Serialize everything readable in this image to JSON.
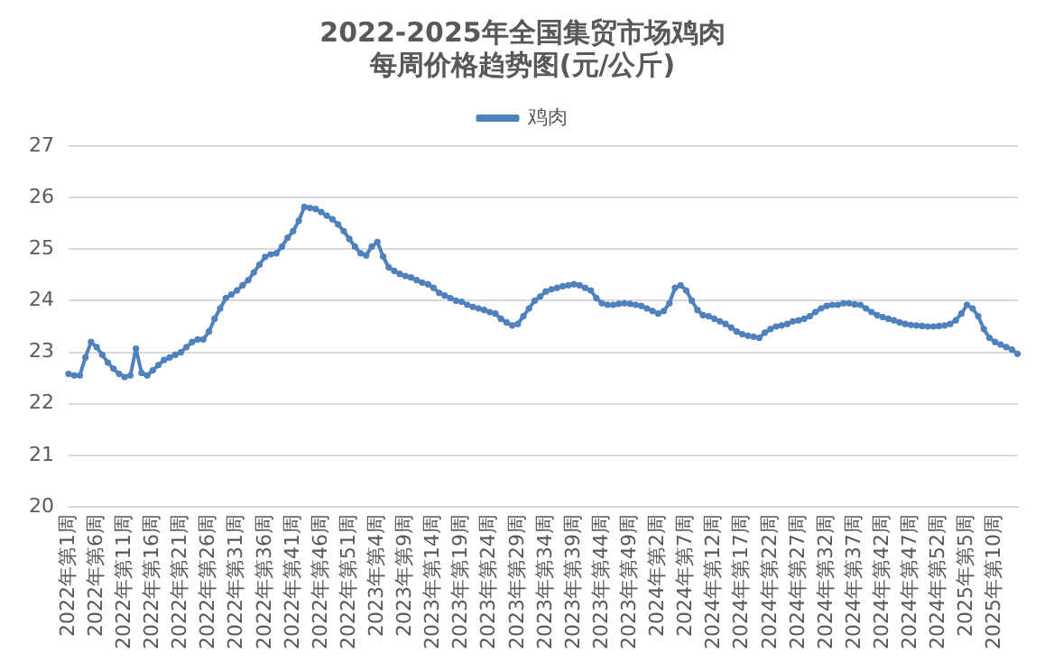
{
  "chart_data": {
    "type": "line",
    "title": "2022-2025年全国集贸市场鸡肉",
    "subtitle": "每周价格趋势图(元/公斤)",
    "categories": [
      "2022年第1周",
      null,
      null,
      null,
      null,
      "2022年第6周",
      null,
      null,
      null,
      null,
      "2022年第11周",
      null,
      null,
      null,
      null,
      "2022年第16周",
      null,
      null,
      null,
      null,
      "2022年第21周",
      null,
      null,
      null,
      null,
      "2022年第26周",
      null,
      null,
      null,
      null,
      "2022年第31周",
      null,
      null,
      null,
      null,
      "2022年第36周",
      null,
      null,
      null,
      null,
      "2022年第41周",
      null,
      null,
      null,
      null,
      "2022年第46周",
      null,
      null,
      null,
      null,
      "2022年第51周",
      null,
      null,
      null,
      null,
      "2023年第4周",
      null,
      null,
      null,
      null,
      "2023年第9周",
      null,
      null,
      null,
      null,
      "2023年第14周",
      null,
      null,
      null,
      null,
      "2023年第19周",
      null,
      null,
      null,
      null,
      "2023年第24周",
      null,
      null,
      null,
      null,
      "2023年第29周",
      null,
      null,
      null,
      null,
      "2023年第34周",
      null,
      null,
      null,
      null,
      "2023年第39周",
      null,
      null,
      null,
      null,
      "2023年第44周",
      null,
      null,
      null,
      null,
      "2023年第49周",
      null,
      null,
      null,
      null,
      "2024年第2周",
      null,
      null,
      null,
      null,
      "2024年第7周",
      null,
      null,
      null,
      null,
      "2024年第12周",
      null,
      null,
      null,
      null,
      "2024年第17周",
      null,
      null,
      null,
      null,
      "2024年第22周",
      null,
      null,
      null,
      null,
      "2024年第27周",
      null,
      null,
      null,
      null,
      "2024年第32周",
      null,
      null,
      null,
      null,
      "2024年第37周",
      null,
      null,
      null,
      null,
      "2024年第42周",
      null,
      null,
      null,
      null,
      "2024年第47周",
      null,
      null,
      null,
      null,
      "2024年第52周",
      null,
      null,
      null,
      null,
      "2025年第5周",
      null,
      null,
      null,
      null,
      "2025年第10周",
      null,
      null,
      null,
      null
    ],
    "series": [
      {
        "name": "鸡肉",
        "color": "#4f81bd",
        "values": [
          22.58,
          22.55,
          22.55,
          22.9,
          23.2,
          23.1,
          22.95,
          22.8,
          22.68,
          22.58,
          22.52,
          22.55,
          23.07,
          22.6,
          22.55,
          22.65,
          22.75,
          22.85,
          22.9,
          22.95,
          23.0,
          23.1,
          23.2,
          23.25,
          23.25,
          23.4,
          23.65,
          23.85,
          24.05,
          24.12,
          24.2,
          24.3,
          24.4,
          24.55,
          24.7,
          24.85,
          24.9,
          24.92,
          25.05,
          25.22,
          25.35,
          25.55,
          25.82,
          25.8,
          25.78,
          25.72,
          25.65,
          25.58,
          25.48,
          25.35,
          25.2,
          25.05,
          24.92,
          24.88,
          25.05,
          25.14,
          24.86,
          24.65,
          24.58,
          24.52,
          24.48,
          24.45,
          24.4,
          24.35,
          24.32,
          24.25,
          24.15,
          24.1,
          24.05,
          24.0,
          23.98,
          23.92,
          23.88,
          23.85,
          23.82,
          23.78,
          23.75,
          23.65,
          23.58,
          23.52,
          23.55,
          23.7,
          23.85,
          24.0,
          24.08,
          24.18,
          24.22,
          24.25,
          24.28,
          24.3,
          24.32,
          24.3,
          24.25,
          24.2,
          24.05,
          23.95,
          23.92,
          23.92,
          23.94,
          23.95,
          23.94,
          23.92,
          23.9,
          23.85,
          23.8,
          23.75,
          23.8,
          23.95,
          24.25,
          24.3,
          24.2,
          24.0,
          23.82,
          23.72,
          23.7,
          23.65,
          23.6,
          23.55,
          23.48,
          23.4,
          23.35,
          23.32,
          23.3,
          23.28,
          23.38,
          23.45,
          23.5,
          23.52,
          23.55,
          23.6,
          23.62,
          23.65,
          23.7,
          23.78,
          23.85,
          23.9,
          23.92,
          23.92,
          23.95,
          23.95,
          23.93,
          23.92,
          23.85,
          23.78,
          23.72,
          23.68,
          23.65,
          23.62,
          23.58,
          23.55,
          23.53,
          23.52,
          23.51,
          23.5,
          23.5,
          23.51,
          23.52,
          23.55,
          23.62,
          23.75,
          23.92,
          23.85,
          23.7,
          23.45,
          23.28,
          23.2,
          23.15,
          23.1,
          23.05,
          22.97
        ]
      }
    ],
    "ylim": [
      20,
      27
    ],
    "yticks": [
      20,
      21,
      22,
      23,
      24,
      25,
      26,
      27
    ],
    "grid": "y",
    "legend": "top",
    "marker": "circle",
    "line_style": "solid"
  }
}
